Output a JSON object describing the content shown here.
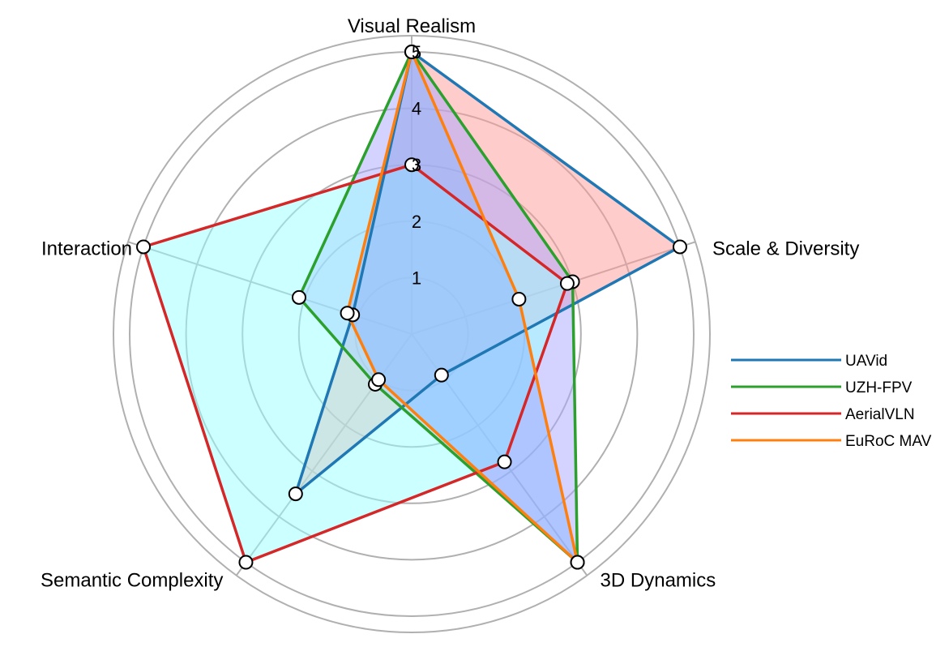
{
  "chart_data": {
    "type": "radar",
    "axes": [
      "Visual Realism",
      "Scale & Diversity",
      "3D Dynamics",
      "Semantic Complexity",
      "Interaction"
    ],
    "rlim": [
      0,
      5
    ],
    "radial_ticks": [
      "1",
      "2",
      "3",
      "4",
      "5"
    ],
    "grid": true,
    "legend_position": "right",
    "series": [
      {
        "name": "UAVid",
        "color": "#1f77b4",
        "fill": "#ff9999",
        "values": [
          5.0,
          5.0,
          0.9,
          3.5,
          1.1
        ]
      },
      {
        "name": "UZH-FPV",
        "color": "#2ca02c",
        "fill": "#aaa6ff",
        "values": [
          5.0,
          3.0,
          5.0,
          1.1,
          2.1
        ]
      },
      {
        "name": "AerialVLN",
        "color": "#d62728",
        "fill": "#99ffff",
        "values": [
          3.0,
          2.9,
          2.8,
          5.0,
          5.0
        ]
      },
      {
        "name": "EuRoC MAV",
        "color": "#ff7f0e",
        "fill": "#87b8ff",
        "values": [
          5.0,
          2.0,
          5.0,
          1.0,
          1.2
        ]
      }
    ]
  }
}
